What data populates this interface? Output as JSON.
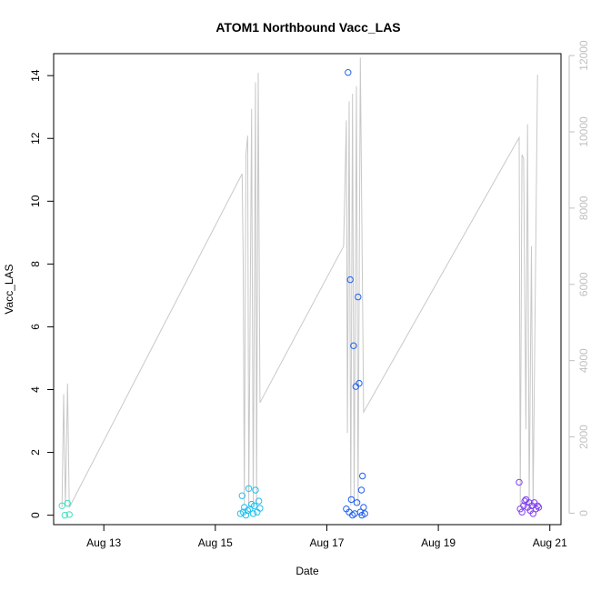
{
  "chart_data": {
    "type": "scatter",
    "title": "ATOM1 Northbound Vacc_LAS",
    "xlabel": "Date",
    "ylabel": "Vacc_LAS",
    "x_unit": "days in August",
    "xlim": [
      12.1,
      21.2
    ],
    "ylim": [
      -0.3,
      14.7
    ],
    "y2lim": [
      -300,
      12050
    ],
    "x_ticks": [
      {
        "value": 13,
        "label": "Aug 13"
      },
      {
        "value": 15,
        "label": "Aug 15"
      },
      {
        "value": 17,
        "label": "Aug 17"
      },
      {
        "value": 19,
        "label": "Aug 19"
      },
      {
        "value": 21,
        "label": "Aug 21"
      }
    ],
    "y_ticks": [
      0,
      2,
      4,
      6,
      8,
      10,
      12,
      14
    ],
    "y2_ticks": [
      0,
      2000,
      4000,
      6000,
      8000,
      10000,
      12000
    ],
    "grid": false,
    "legend": "none",
    "colors": {
      "line": "#c8c8c8",
      "right_axis": "#c0c0c0"
    },
    "series": [
      {
        "color": "#40e0c0",
        "points": [
          [
            12.25,
            0.3
          ],
          [
            12.3,
            0.0
          ],
          [
            12.35,
            0.38
          ],
          [
            12.38,
            0.02
          ]
        ]
      },
      {
        "color": "#20c0f0",
        "points": [
          [
            15.45,
            0.05
          ],
          [
            15.48,
            0.62
          ],
          [
            15.5,
            0.1
          ],
          [
            15.52,
            0.25
          ],
          [
            15.55,
            0.0
          ],
          [
            15.58,
            0.15
          ],
          [
            15.6,
            0.85
          ],
          [
            15.62,
            0.2
          ],
          [
            15.65,
            0.35
          ],
          [
            15.68,
            0.05
          ],
          [
            15.7,
            0.3
          ],
          [
            15.72,
            0.8
          ],
          [
            15.75,
            0.1
          ],
          [
            15.78,
            0.45
          ],
          [
            15.8,
            0.22
          ]
        ]
      },
      {
        "color": "#2060f0",
        "points": [
          [
            17.35,
            0.2
          ],
          [
            17.38,
            14.1
          ],
          [
            17.4,
            0.1
          ],
          [
            17.42,
            7.5
          ],
          [
            17.44,
            0.5
          ],
          [
            17.46,
            0.0
          ],
          [
            17.48,
            5.4
          ],
          [
            17.5,
            0.05
          ],
          [
            17.52,
            4.1
          ],
          [
            17.54,
            0.4
          ],
          [
            17.56,
            6.95
          ],
          [
            17.58,
            4.2
          ],
          [
            17.6,
            0.1
          ],
          [
            17.62,
            0.8
          ],
          [
            17.63,
            0.0
          ],
          [
            17.64,
            1.25
          ],
          [
            17.66,
            0.25
          ],
          [
            17.68,
            0.05
          ]
        ]
      },
      {
        "color": "#8040f0",
        "points": [
          [
            20.45,
            1.05
          ],
          [
            20.47,
            0.2
          ],
          [
            20.5,
            0.1
          ],
          [
            20.53,
            0.3
          ],
          [
            20.55,
            0.45
          ],
          [
            20.57,
            0.5
          ],
          [
            20.6,
            0.25
          ],
          [
            20.63,
            0.4
          ],
          [
            20.65,
            0.15
          ],
          [
            20.68,
            0.3
          ],
          [
            20.7,
            0.05
          ],
          [
            20.72,
            0.4
          ],
          [
            20.75,
            0.2
          ],
          [
            20.78,
            0.3
          ],
          [
            20.8,
            0.25
          ]
        ]
      }
    ],
    "line_series": {
      "axis": "right",
      "points": [
        [
          12.25,
          150
        ],
        [
          12.28,
          3120
        ],
        [
          12.31,
          200
        ],
        [
          12.35,
          3400
        ],
        [
          12.38,
          150
        ],
        [
          15.48,
          8900
        ],
        [
          15.5,
          6550
        ],
        [
          15.52,
          200
        ],
        [
          15.55,
          9400
        ],
        [
          15.58,
          9900
        ],
        [
          15.6,
          200
        ],
        [
          15.65,
          10600
        ],
        [
          15.68,
          200
        ],
        [
          15.72,
          11300
        ],
        [
          15.74,
          200
        ],
        [
          15.77,
          11550
        ],
        [
          15.8,
          2900
        ],
        [
          17.3,
          7000
        ],
        [
          17.35,
          10300
        ],
        [
          17.37,
          2100
        ],
        [
          17.4,
          10800
        ],
        [
          17.43,
          200
        ],
        [
          17.46,
          11000
        ],
        [
          17.49,
          200
        ],
        [
          17.53,
          11200
        ],
        [
          17.56,
          200
        ],
        [
          17.6,
          11950
        ],
        [
          17.66,
          2650
        ],
        [
          20.45,
          9850
        ],
        [
          20.47,
          200
        ],
        [
          20.5,
          9400
        ],
        [
          20.53,
          9300
        ],
        [
          20.57,
          2200
        ],
        [
          20.6,
          10200
        ],
        [
          20.63,
          200
        ],
        [
          20.67,
          7000
        ],
        [
          20.7,
          200
        ],
        [
          20.78,
          11500
        ]
      ]
    }
  }
}
